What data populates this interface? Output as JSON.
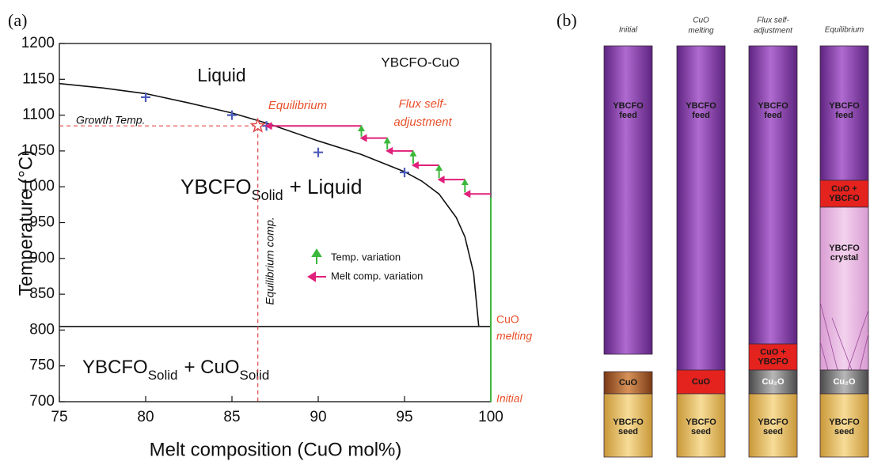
{
  "chart_data": {
    "type": "line",
    "panel_label": "(a)",
    "xlabel": "Melt composition (CuO mol%)",
    "ylabel": "Temperature (°C)",
    "xlim": [
      75,
      100
    ],
    "xticks": [
      75,
      80,
      85,
      90,
      95,
      100
    ],
    "ylim": [
      700,
      1200
    ],
    "yticks": [
      700,
      750,
      800,
      850,
      900,
      950,
      1000,
      1050,
      1100,
      1150,
      1200
    ],
    "grid": false,
    "series": [
      {
        "style": "line",
        "color": "#111111",
        "x": [
          75,
          77.5,
          80,
          82.5,
          85,
          87,
          90,
          92.5,
          95,
          96,
          97,
          98,
          98.5,
          99,
          99.3
        ],
        "values": [
          1144,
          1138,
          1130,
          1117,
          1103,
          1089,
          1064,
          1045,
          1021,
          1008,
          990,
          957,
          930,
          880,
          806
        ]
      },
      {
        "style": "plus",
        "color": "#4a5ab8",
        "x": [
          80,
          85,
          87,
          90,
          95
        ],
        "values": [
          1125,
          1100,
          1085,
          1048,
          1020
        ]
      },
      {
        "style": "line",
        "color": "#111111",
        "x": [
          75,
          100
        ],
        "values": [
          805,
          805
        ]
      },
      {
        "style": "dashed",
        "color": "#e04848",
        "x": [
          75,
          86.5,
          86.5
        ],
        "values": [
          1085,
          1085,
          700
        ]
      },
      {
        "style": "star",
        "color": "#e04848",
        "x": [
          86.5
        ],
        "values": [
          1085
        ]
      },
      {
        "name": "Melt comp. variation",
        "style": "arrow-left",
        "color": "#e0207a",
        "x": [
          92.5,
          87,
          null,
          94,
          92.5,
          null,
          95.5,
          94,
          null,
          97,
          95.5,
          null,
          98.5,
          97,
          null,
          100,
          98.5
        ],
        "values": [
          1085,
          1085,
          null,
          1068,
          1068,
          null,
          1050,
          1050,
          null,
          1030,
          1030,
          null,
          1010,
          1010,
          null,
          990,
          990
        ]
      },
      {
        "name": "Temp. variation",
        "style": "arrow-up",
        "color": "#3cb83c",
        "x": [
          92.5,
          92.5,
          null,
          94,
          94,
          null,
          95.5,
          95.5,
          null,
          97,
          97,
          null,
          98.5,
          98.5,
          null,
          100,
          100
        ],
        "values": [
          1070,
          1083,
          null,
          1052,
          1066,
          null,
          1032,
          1048,
          null,
          1012,
          1028,
          null,
          992,
          1008,
          null,
          700,
          985
        ]
      }
    ],
    "annotations": {
      "liquid": "Liquid",
      "system": "YBCFO-CuO",
      "equilibrium": "Equilibrium",
      "flux": [
        "Flux self-",
        "adjustment"
      ],
      "growth_temp": "Growth Temp.",
      "eq_comp": "Equilibrium comp.",
      "cuo_melting": [
        "CuO",
        "melting"
      ],
      "initial": "Initial",
      "solid_liquid": [
        "YBCFO",
        "Solid",
        "+ Liquid"
      ],
      "solid_solid": [
        "YBCFO",
        "Solid",
        "+ CuO",
        "Solid"
      ]
    }
  },
  "diagram": {
    "panel_label": "(b)",
    "columns": [
      {
        "header": [
          "Initial"
        ],
        "blocks": [
          {
            "label": [
              "YBCFO",
              "feed"
            ]
          },
          {
            "label": [
              "CuO"
            ]
          },
          {
            "label": [
              "YBCFO",
              "seed"
            ]
          }
        ]
      },
      {
        "header": [
          "CuO",
          "melting"
        ],
        "blocks": [
          {
            "label": [
              "YBCFO",
              "feed"
            ]
          },
          {
            "label": [
              "CuO"
            ]
          },
          {
            "label": [
              "YBCFO",
              "seed"
            ]
          }
        ]
      },
      {
        "header": [
          "Flux self-",
          "adjustment"
        ],
        "blocks": [
          {
            "label": [
              "YBCFO",
              "feed"
            ]
          },
          {
            "label": [
              "CuO +",
              "YBCFO"
            ]
          },
          {
            "label": [
              "Cu₂O"
            ]
          },
          {
            "label": [
              "YBCFO",
              "seed"
            ]
          }
        ]
      },
      {
        "header": [
          "Equilibrium"
        ],
        "blocks": [
          {
            "label": [
              "YBCFO",
              "feed"
            ]
          },
          {
            "label": [
              "CuO +",
              "YBCFO"
            ]
          },
          {
            "label": [
              "YBCFO",
              "crystal"
            ]
          },
          {
            "label": [
              "Cu₂O"
            ]
          },
          {
            "label": [
              "YBCFO",
              "seed"
            ]
          }
        ]
      }
    ]
  }
}
